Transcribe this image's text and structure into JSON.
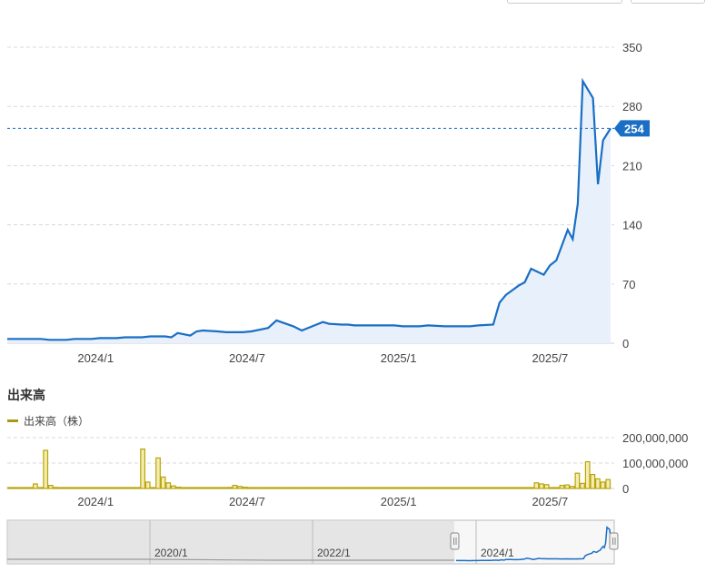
{
  "chart_data": {
    "price": {
      "type": "area",
      "series": [
        {
          "x": [
            "2023-10",
            "2023-11",
            "2023-11",
            "2023-12",
            "2023-12",
            "2024-01",
            "2024-01",
            "2024-02",
            "2024-02",
            "2024-03",
            "2024-03",
            "2024-04",
            "2024-04",
            "2024-04",
            "2024-05",
            "2024-05",
            "2024-05",
            "2024-06",
            "2024-06",
            "2024-07",
            "2024-07",
            "2024-08",
            "2024-08",
            "2024-09",
            "2024-09",
            "2024-10",
            "2024-10",
            "2024-10",
            "2024-11",
            "2024-11",
            "2024-11",
            "2024-12",
            "2024-12",
            "2025-01",
            "2025-01",
            "2025-02",
            "2025-02",
            "2025-03",
            "2025-03",
            "2025-04",
            "2025-04",
            "2025-05",
            "2025-05",
            "2025-05",
            "2025-06",
            "2025-06",
            "2025-06",
            "2025-07",
            "2025-07",
            "2025-07",
            "2025-08",
            "2025-08",
            "2025-08",
            "2025-08",
            "2025-09",
            "2025-09",
            "2025-09",
            "2025-09"
          ],
          "values": [
            5,
            5,
            4,
            4,
            5,
            5,
            6,
            6,
            7,
            7,
            8,
            8,
            7,
            12,
            9,
            14,
            15,
            14,
            13,
            13,
            14,
            18,
            27,
            20,
            15,
            22,
            25,
            23,
            22,
            22,
            21,
            21,
            21,
            21,
            20,
            20,
            21,
            20,
            20,
            20,
            21,
            22,
            48,
            57,
            68,
            72,
            88,
            81,
            92,
            98,
            134,
            123,
            165,
            310,
            290,
            188,
            240,
            254
          ],
          "color": "#1a6fc4"
        }
      ],
      "ylim": [
        0,
        350
      ],
      "yticks": [
        "0",
        "70",
        "140",
        "210",
        "280",
        "350"
      ],
      "ytick_values": [
        0,
        70,
        140,
        210,
        280,
        350
      ],
      "xticks": [
        "2024/1",
        "2024/7",
        "2025/1",
        "2025/7"
      ],
      "current_value_label": "254",
      "current_value": 254
    },
    "volume": {
      "type": "bar",
      "title": "出来高",
      "legend": "出来高（株）",
      "color": "#c8b400",
      "values": [
        2,
        2,
        2,
        3,
        2,
        18,
        2,
        150,
        12,
        4,
        2,
        2,
        1,
        1,
        1,
        1,
        2,
        1,
        1,
        1,
        1,
        1,
        1,
        1,
        1,
        1,
        155,
        25,
        1,
        120,
        45,
        22,
        10,
        5,
        3,
        2,
        2,
        1,
        1,
        1,
        1,
        1,
        2,
        4,
        12,
        8,
        5,
        2,
        1,
        2,
        1,
        1,
        1,
        1,
        1,
        1,
        1,
        1,
        1,
        1,
        1,
        1,
        1,
        1,
        1,
        1,
        1,
        1,
        1,
        1,
        1,
        1,
        1,
        1,
        1,
        1,
        1,
        1,
        1,
        1,
        1,
        1,
        1,
        1,
        1,
        1,
        1,
        1,
        1,
        1,
        1,
        1,
        1,
        1,
        1,
        1,
        1,
        1,
        1,
        2,
        1,
        1,
        1,
        22,
        18,
        15,
        3,
        2,
        12,
        14,
        8,
        60,
        20,
        105,
        55,
        38,
        25,
        35
      ],
      "ylim": [
        0,
        200000000
      ],
      "yticks": [
        "0",
        "100,000,000",
        "200,000,000"
      ],
      "ytick_values": [
        0,
        100000000,
        200000000
      ],
      "xticks": [
        "2024/1",
        "2024/7",
        "2025/1",
        "2025/7"
      ]
    },
    "navigator": {
      "xticks": [
        "2020/1",
        "2022/1",
        "2024/1"
      ]
    }
  }
}
